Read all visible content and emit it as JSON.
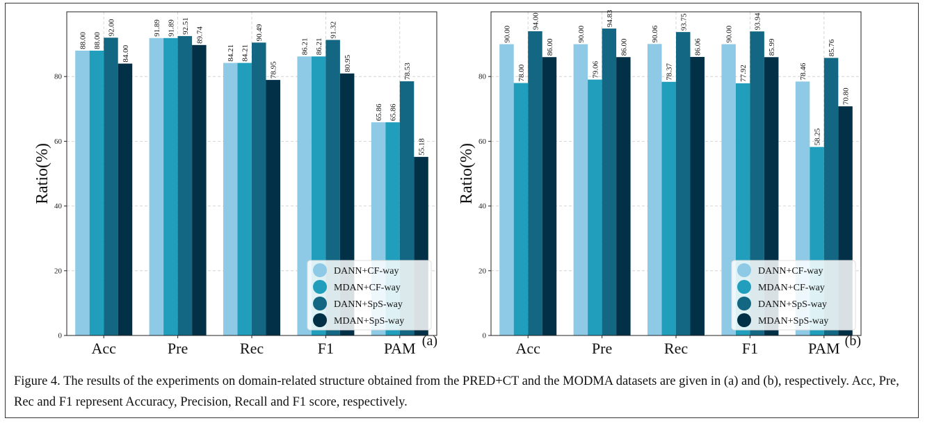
{
  "chart_data": [
    {
      "type": "bar",
      "panel_label": "(a)",
      "ylabel": "Ratio(%)",
      "categories": [
        "Acc",
        "Pre",
        "Rec",
        "F1",
        "PAM"
      ],
      "ylim": [
        0,
        100
      ],
      "yticks": [
        "0",
        "20",
        "40",
        "60",
        "80"
      ],
      "grid": true,
      "legend_position": "lower-right",
      "series": [
        {
          "name": "DANN+CF-way",
          "color": "#8ecae6",
          "values": [
            88.0,
            91.89,
            84.21,
            86.21,
            65.86
          ],
          "labels": [
            "88.00",
            "91.89",
            "84.21",
            "86.21",
            "65.86"
          ]
        },
        {
          "name": "MDAN+CF-way",
          "color": "#219ebc",
          "values": [
            88.0,
            91.89,
            84.21,
            86.21,
            65.86
          ],
          "labels": [
            "88.00",
            "91.89",
            "84.21",
            "86.21",
            "65.86"
          ]
        },
        {
          "name": "DANN+SpS-way",
          "color": "#136783",
          "values": [
            92.0,
            92.51,
            90.49,
            91.32,
            78.53
          ],
          "labels": [
            "92.00",
            "92.51",
            "90.49",
            "91.32",
            "78.53"
          ]
        },
        {
          "name": "MDAN+SpS-way",
          "color": "#023047",
          "values": [
            84.0,
            89.74,
            78.95,
            80.95,
            55.18
          ],
          "labels": [
            "84.00",
            "89.74",
            "78.95",
            "80.95",
            "55.18"
          ]
        }
      ]
    },
    {
      "type": "bar",
      "panel_label": "(b)",
      "ylabel": "Ratio(%)",
      "categories": [
        "Acc",
        "Pre",
        "Rec",
        "F1",
        "PAM"
      ],
      "ylim": [
        0,
        100
      ],
      "yticks": [
        "0",
        "20",
        "40",
        "60",
        "80"
      ],
      "grid": true,
      "legend_position": "lower-right",
      "series": [
        {
          "name": "DANN+CF-way",
          "color": "#8ecae6",
          "values": [
            90.0,
            90.0,
            90.06,
            90.0,
            78.46
          ],
          "labels": [
            "90.00",
            "90.00",
            "90.06",
            "90.00",
            "78.46"
          ]
        },
        {
          "name": "MDAN+CF-way",
          "color": "#219ebc",
          "values": [
            78.0,
            79.06,
            78.37,
            77.92,
            58.25
          ],
          "labels": [
            "78.00",
            "79.06",
            "78.37",
            "77.92",
            "58.25"
          ]
        },
        {
          "name": "DANN+SpS-way",
          "color": "#136783",
          "values": [
            94.0,
            94.83,
            93.75,
            93.94,
            85.76
          ],
          "labels": [
            "94.00",
            "94.83",
            "93.75",
            "93.94",
            "85.76"
          ]
        },
        {
          "name": "MDAN+SpS-way",
          "color": "#023047",
          "values": [
            86.0,
            86.0,
            86.06,
            85.99,
            70.8
          ],
          "labels": [
            "86.00",
            "86.00",
            "86.06",
            "85.99",
            "70.80"
          ]
        }
      ]
    }
  ],
  "caption": "Figure 4. The results of the experiments on domain-related structure obtained from the PRED+CT and the MODMA datasets are given in (a) and (b), respectively. Acc, Pre, Rec and F1 represent Accuracy, Precision, Recall and F1 score, respectively."
}
